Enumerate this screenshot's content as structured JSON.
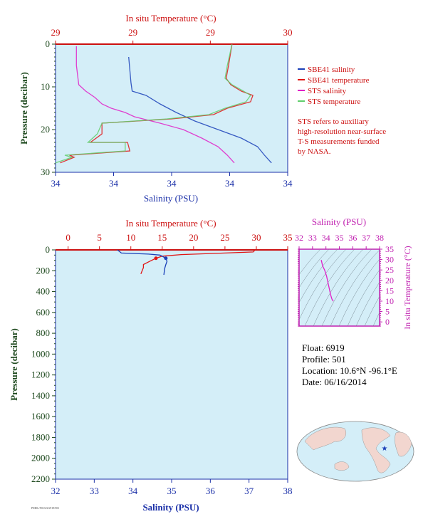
{
  "colors": {
    "salinity": "#1a3fb8",
    "temperature": "#e01515",
    "sts_salinity": "#e020c8",
    "sts_temperature": "#5fce6b",
    "ocean_bg": "#d4eef8",
    "axis_blue": "#1a2fa8",
    "axis_red": "#cc1010",
    "axis_green": "#1f4a1f",
    "axis_magenta": "#c020b0",
    "label_gold": "#806018",
    "land": "#f2d6cf"
  },
  "top_chart": {
    "top_axis_title": "In situ Temperature (°C)",
    "top_ticks": [
      "29",
      "29",
      "29",
      "30"
    ],
    "left_axis_title": "Pressure (decibar)",
    "left_ticks": [
      "0",
      "10",
      "20",
      "30"
    ],
    "bottom_axis_title": "Salinity (PSU)",
    "bottom_ticks": [
      "34",
      "34",
      "34",
      "34",
      "34"
    ],
    "legend": [
      {
        "label": "SBE41 salinity",
        "color_key": "salinity"
      },
      {
        "label": "SBE41 temperature",
        "color_key": "temperature"
      },
      {
        "label": "STS salinity",
        "color_key": "sts_salinity"
      },
      {
        "label": "STS temperature",
        "color_key": "sts_temperature"
      }
    ],
    "note_lines": [
      "STS refers to auxiliary",
      "high-resolution near-surface",
      "T-S measurements funded",
      "by NASA."
    ]
  },
  "bottom_chart": {
    "top_axis_title": "In situ Temperature (°C)",
    "top_ticks": [
      "0",
      "5",
      "10",
      "15",
      "20",
      "25",
      "30",
      "35"
    ],
    "left_axis_title": "Pressure (decibar)",
    "left_ticks": [
      "0",
      "200",
      "400",
      "600",
      "800",
      "1000",
      "1200",
      "1400",
      "1600",
      "1800",
      "2000",
      "2200"
    ],
    "bottom_axis_title": "Salinity (PSU)",
    "bottom_ticks": [
      "32",
      "33",
      "34",
      "35",
      "36",
      "37",
      "38"
    ]
  },
  "ts_inset": {
    "top_axis_title": "Salinity (PSU)",
    "top_ticks": [
      "32",
      "33",
      "34",
      "35",
      "36",
      "37",
      "38"
    ],
    "right_axis_title": "In situ Temperature (°C)",
    "right_ticks": [
      "0",
      "5",
      "10",
      "15",
      "20",
      "25",
      "30",
      "35"
    ]
  },
  "float_info": {
    "float": "Float:  6919",
    "profile": "Profile:  501",
    "location": "Location:  10.6°N  -96.1°E",
    "date": "Date:  06/16/2014"
  },
  "footer_label": "PMEL/NOAA  6919/501",
  "chart_data": [
    {
      "type": "line",
      "title": "",
      "xlabel": "Salinity (PSU)",
      "x2label": "In situ Temperature (°C)",
      "ylabel": "Pressure (decibar)",
      "x_tick_labels": [
        "34",
        "34",
        "34",
        "34",
        "34"
      ],
      "x2_tick_labels": [
        "29",
        "29",
        "29",
        "30"
      ],
      "ylim": [
        0,
        30
      ],
      "y_inverted": true,
      "legend_position": "right",
      "series": [
        {
          "name": "SBE41 salinity",
          "axis": "salinity",
          "color_key": "salinity",
          "points": [
            [
              0.315,
              3
            ],
            [
              0.32,
              6
            ],
            [
              0.325,
              9
            ],
            [
              0.33,
              11
            ],
            [
              0.39,
              12
            ],
            [
              0.45,
              14
            ],
            [
              0.52,
              16
            ],
            [
              0.6,
              18
            ],
            [
              0.7,
              20
            ],
            [
              0.8,
              22
            ],
            [
              0.87,
              24
            ],
            [
              0.9,
              26
            ],
            [
              0.93,
              27.8
            ]
          ]
        },
        {
          "name": "SBE41 temperature",
          "axis": "temperature",
          "color_key": "temperature",
          "points": [
            [
              0.76,
              0
            ],
            [
              0.745,
              5
            ],
            [
              0.735,
              8
            ],
            [
              0.755,
              9.5
            ],
            [
              0.8,
              11
            ],
            [
              0.85,
              12
            ],
            [
              0.84,
              13.5
            ],
            [
              0.74,
              15
            ],
            [
              0.68,
              16.5
            ],
            [
              0.5,
              17.5
            ],
            [
              0.2,
              18.5
            ],
            [
              0.2,
              21
            ],
            [
              0.15,
              23
            ],
            [
              0.31,
              23
            ],
            [
              0.32,
              25
            ],
            [
              0.06,
              26
            ],
            [
              0.08,
              26.5
            ],
            [
              0.02,
              27.8
            ]
          ]
        },
        {
          "name": "STS salinity",
          "axis": "salinity",
          "color_key": "sts_salinity",
          "points": [
            [
              0.09,
              0.5
            ],
            [
              0.09,
              5
            ],
            [
              0.1,
              9.5
            ],
            [
              0.13,
              11
            ],
            [
              0.17,
              12.5
            ],
            [
              0.2,
              14
            ],
            [
              0.24,
              15
            ],
            [
              0.3,
              16
            ],
            [
              0.34,
              17
            ],
            [
              0.45,
              18.5
            ],
            [
              0.55,
              20
            ],
            [
              0.63,
              22
            ],
            [
              0.7,
              24
            ],
            [
              0.74,
              26
            ],
            [
              0.77,
              27.8
            ]
          ]
        },
        {
          "name": "STS temperature",
          "axis": "temperature",
          "color_key": "sts_temperature",
          "points": [
            [
              0.76,
              0
            ],
            [
              0.74,
              5
            ],
            [
              0.73,
              8
            ],
            [
              0.76,
              9.5
            ],
            [
              0.81,
              11
            ],
            [
              0.84,
              12
            ],
            [
              0.82,
              13.5
            ],
            [
              0.73,
              15
            ],
            [
              0.66,
              16.5
            ],
            [
              0.48,
              17.5
            ],
            [
              0.2,
              18.5
            ],
            [
              0.18,
              21
            ],
            [
              0.14,
              23
            ],
            [
              0.3,
              23
            ],
            [
              0.3,
              25
            ],
            [
              0.04,
              26
            ],
            [
              0.07,
              26.5
            ],
            [
              0.0,
              27.8
            ]
          ]
        }
      ]
    },
    {
      "type": "line",
      "title": "",
      "xlabel": "Salinity (PSU)",
      "x2label": "In situ Temperature (°C)",
      "ylabel": "Pressure (decibar)",
      "xlim": [
        32,
        38
      ],
      "x2lim": [
        -2,
        35
      ],
      "ylim": [
        0,
        2200
      ],
      "y_inverted": true,
      "series": [
        {
          "name": "",
          "axis": "temperature",
          "color_key": "temperature",
          "marker_last": true,
          "points": [
            [
              29.8,
              0
            ],
            [
              29.5,
              20
            ],
            [
              25,
              30
            ],
            [
              18,
              45
            ],
            [
              15,
              60
            ],
            [
              14,
              80
            ],
            [
              13,
              110
            ],
            [
              12,
              140
            ],
            [
              12,
              170
            ],
            [
              11.6,
              230
            ]
          ]
        },
        {
          "name": "",
          "axis": "salinity",
          "color_key": "salinity",
          "marker_last": true,
          "points": [
            [
              33.6,
              0
            ],
            [
              33.7,
              30
            ],
            [
              34.4,
              40
            ],
            [
              34.7,
              50
            ],
            [
              34.85,
              80
            ],
            [
              34.88,
              110
            ],
            [
              34.85,
              140
            ],
            [
              34.82,
              180
            ],
            [
              34.8,
              240
            ]
          ]
        }
      ]
    },
    {
      "type": "scatter",
      "title": "",
      "xlabel": "Salinity (PSU)",
      "ylabel": "In situ Temperature (°C)",
      "xlim": [
        32,
        38
      ],
      "ylim": [
        -2,
        35
      ],
      "series": [
        {
          "name": "",
          "color_key": "sts_salinity",
          "points": [
            [
              33.65,
              29.8
            ],
            [
              33.75,
              27
            ],
            [
              33.9,
              25
            ],
            [
              34.05,
              22
            ],
            [
              34.15,
              19
            ],
            [
              34.25,
              16
            ],
            [
              34.35,
              13
            ],
            [
              34.45,
              11
            ],
            [
              34.55,
              10
            ]
          ]
        }
      ]
    }
  ]
}
